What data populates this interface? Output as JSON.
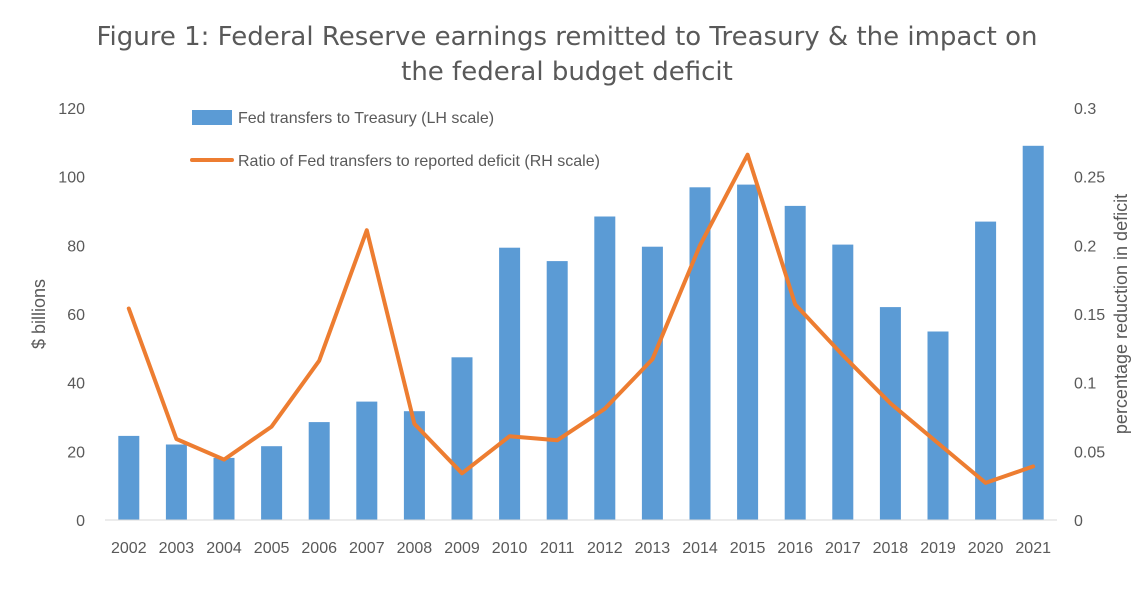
{
  "chart_data": {
    "type": "bar+line",
    "title_line1": "Figure 1: Federal Reserve earnings remitted to Treasury & the impact on",
    "title_line2": "the federal budget deficit",
    "categories": [
      "2002",
      "2003",
      "2004",
      "2005",
      "2006",
      "2007",
      "2008",
      "2009",
      "2010",
      "2011",
      "2012",
      "2013",
      "2014",
      "2015",
      "2016",
      "2017",
      "2018",
      "2019",
      "2020",
      "2021"
    ],
    "series": [
      {
        "name": "Fed transfers to Treasury (LH scale)",
        "type": "bar",
        "axis": "left",
        "color": "#5B9BD5",
        "values": [
          24.5,
          22,
          18.1,
          21.5,
          28.5,
          34.5,
          31.7,
          47.4,
          79.3,
          75.4,
          88.4,
          79.6,
          96.9,
          97.7,
          91.5,
          80.2,
          62,
          54.9,
          86.9,
          109
        ]
      },
      {
        "name": "Ratio of Fed transfers to reported deficit (RH scale)",
        "type": "line",
        "axis": "right",
        "color": "#ED7D31",
        "values": [
          0.154,
          0.059,
          0.044,
          0.068,
          0.116,
          0.211,
          0.07,
          0.034,
          0.061,
          0.058,
          0.081,
          0.117,
          0.2,
          0.266,
          0.157,
          0.12,
          0.085,
          0.056,
          0.027,
          0.039
        ]
      }
    ],
    "ylabel_left": "$ billions",
    "ylabel_right": "percentage reduction in deficit",
    "ylim_left": [
      0,
      120
    ],
    "ylim_right": [
      0,
      0.3
    ],
    "yticks_left": [
      "0",
      "20",
      "40",
      "60",
      "80",
      "100",
      "120"
    ],
    "yticks_right": [
      "0",
      "0.05",
      "0.1",
      "0.15",
      "0.2",
      "0.25",
      "0.3"
    ],
    "grid": false,
    "legend_position": "top-left"
  }
}
